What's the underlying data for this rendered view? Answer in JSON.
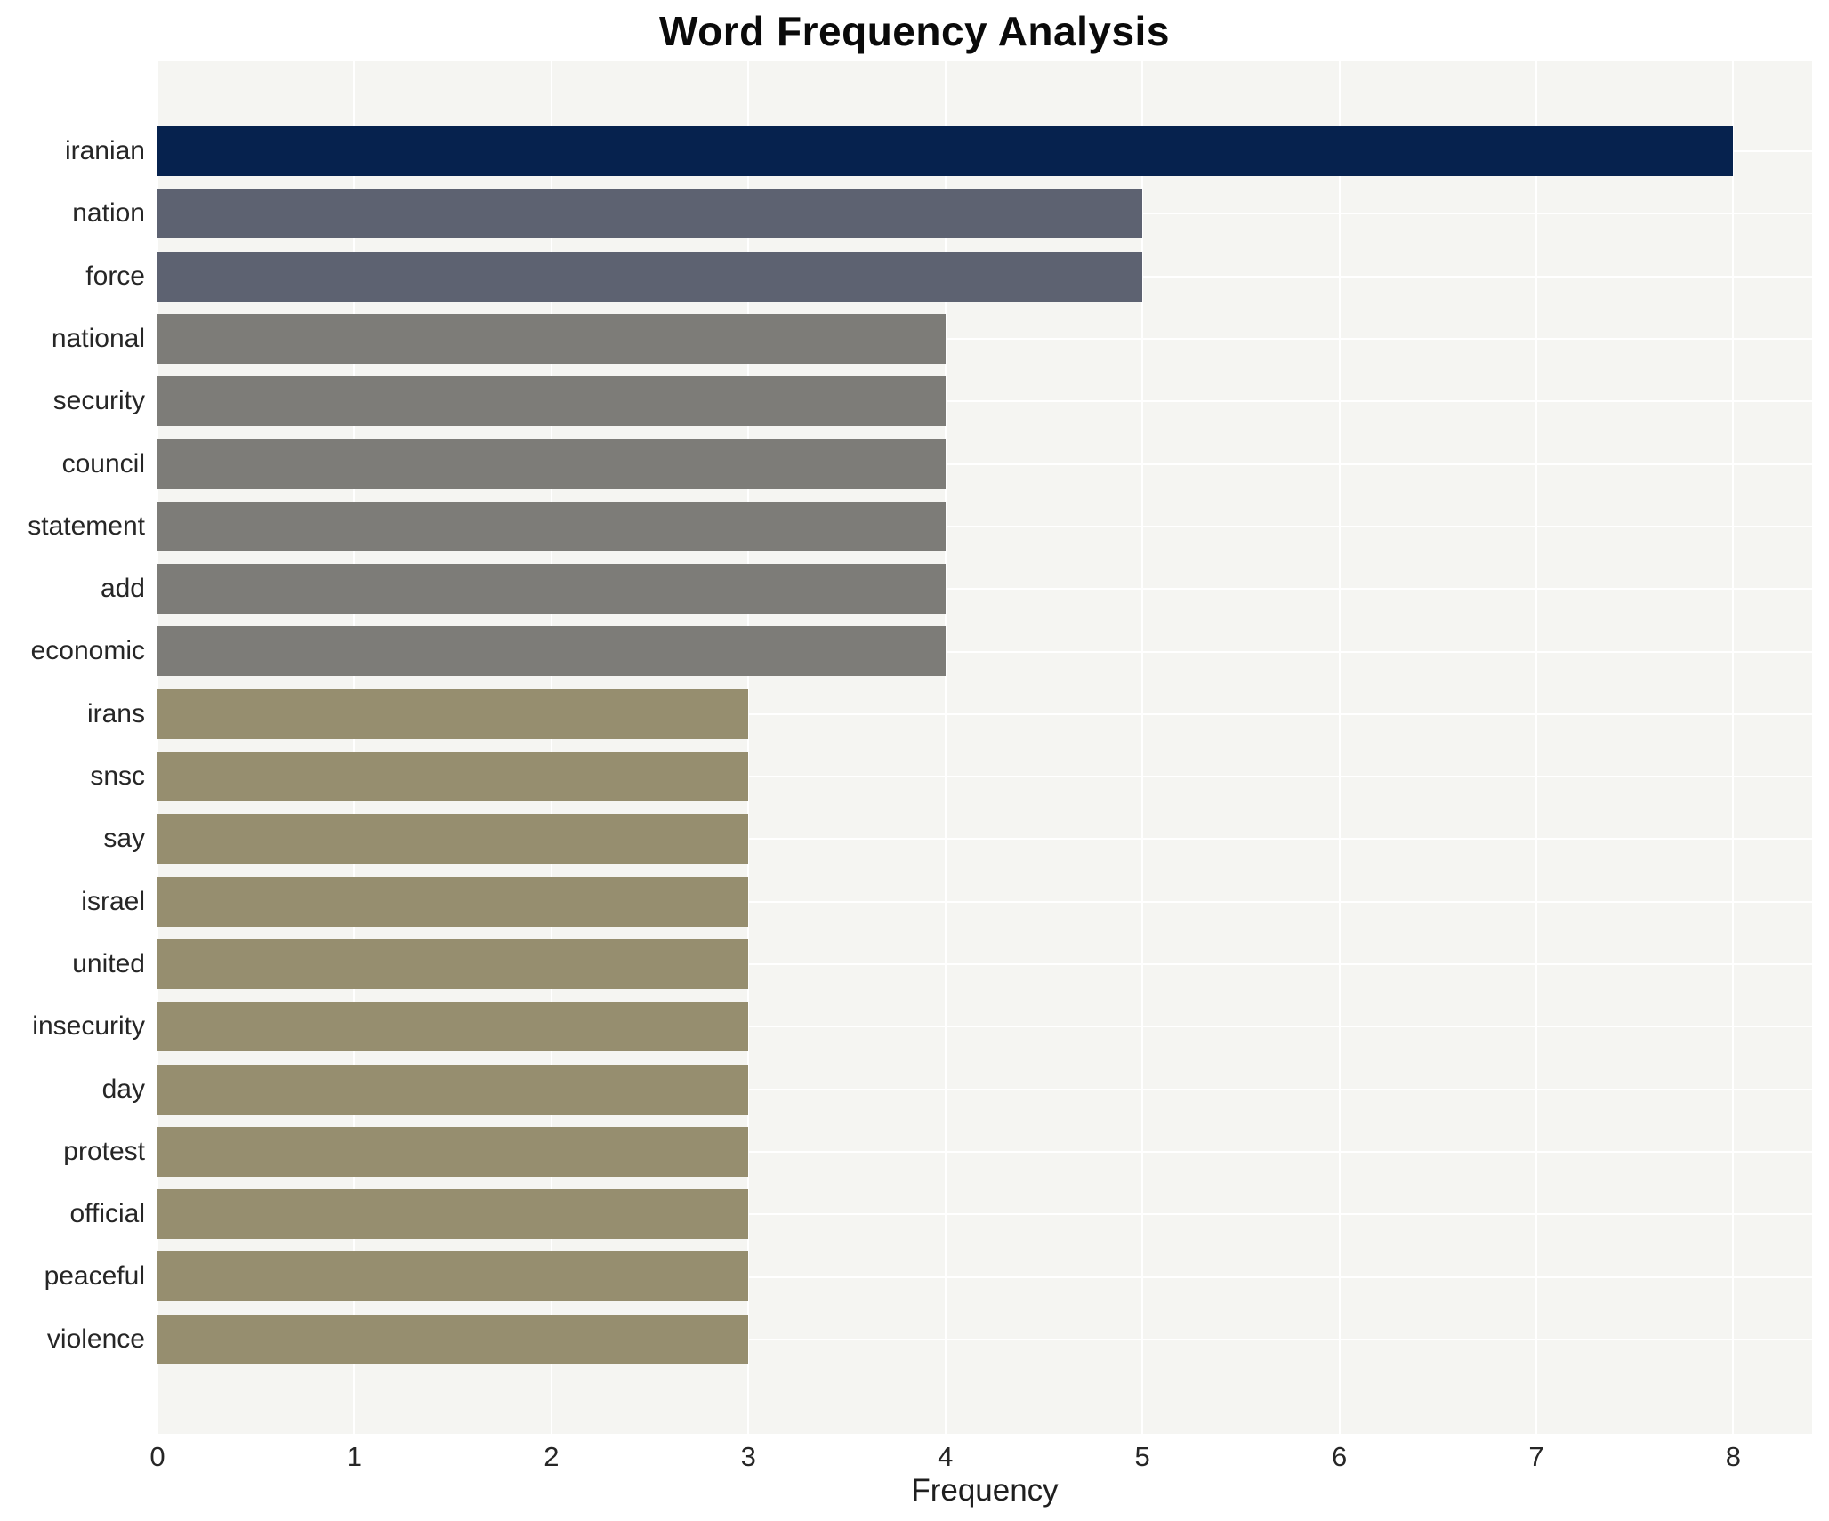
{
  "title": "Word Frequency Analysis",
  "x_axis": {
    "label": "Frequency",
    "ticks": [
      0,
      1,
      2,
      3,
      4,
      5,
      6,
      7,
      8
    ],
    "max": 8.4
  },
  "chart_data": {
    "type": "bar",
    "orientation": "horizontal",
    "title": "Word Frequency Analysis",
    "xlabel": "Frequency",
    "ylabel": "",
    "xlim": [
      0,
      8.4
    ],
    "xticks": [
      0,
      1,
      2,
      3,
      4,
      5,
      6,
      7,
      8
    ],
    "grid": true,
    "legend": false,
    "categories": [
      "iranian",
      "nation",
      "force",
      "national",
      "security",
      "council",
      "statement",
      "add",
      "economic",
      "irans",
      "snsc",
      "say",
      "israel",
      "united",
      "insecurity",
      "day",
      "protest",
      "official",
      "peaceful",
      "violence"
    ],
    "values": [
      8,
      5,
      5,
      4,
      4,
      4,
      4,
      4,
      4,
      3,
      3,
      3,
      3,
      3,
      3,
      3,
      3,
      3,
      3,
      3
    ],
    "bar_colors": [
      "#06224e",
      "#5d6271",
      "#5d6271",
      "#7d7c78",
      "#7d7c78",
      "#7d7c78",
      "#7d7c78",
      "#7d7c78",
      "#7d7c78",
      "#968e6f",
      "#968e6f",
      "#968e6f",
      "#968e6f",
      "#968e6f",
      "#968e6f",
      "#968e6f",
      "#968e6f",
      "#968e6f",
      "#968e6f",
      "#968e6f"
    ]
  },
  "colors": {
    "plot_background": "#f5f5f2",
    "gridline": "#ffffff",
    "value_8": "#06224e",
    "value_5": "#5d6271",
    "value_4": "#7d7c78",
    "value_3": "#968e6f",
    "text": "#262626"
  }
}
